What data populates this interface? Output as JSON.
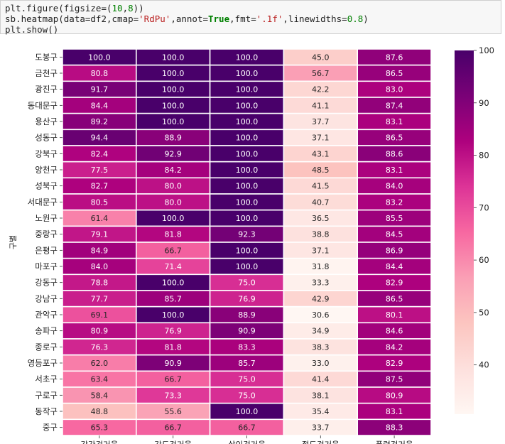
{
  "code": {
    "line1_a": "plt.figure(figsize=(",
    "line1_n1": "10",
    "line1_b": ",",
    "line1_n2": "8",
    "line1_c": "))",
    "line2_a": "sb.heatmap(data=df2,cmap=",
    "line2_s1": "'RdPu'",
    "line2_b": ",annot=",
    "line2_k": "True",
    "line2_c": ",fmt=",
    "line2_s2": "'.1f'",
    "line2_d": ",linewidths=",
    "line2_n": "0.8",
    "line2_e": ")",
    "line3": "plt.show()"
  },
  "chart_data": {
    "type": "heatmap",
    "ylabel": "구별",
    "categories_x": [
      "강간검거율",
      "강도검거율",
      "살인검거율",
      "절도검거율",
      "폭력검거율"
    ],
    "categories_y": [
      "도봉구",
      "금천구",
      "광진구",
      "동대문구",
      "용산구",
      "성동구",
      "강북구",
      "양천구",
      "성북구",
      "서대문구",
      "노원구",
      "중랑구",
      "은평구",
      "마포구",
      "강동구",
      "강남구",
      "관악구",
      "송파구",
      "종로구",
      "영등포구",
      "서초구",
      "구로구",
      "동작구",
      "중구"
    ],
    "values": [
      [
        100.0,
        100.0,
        100.0,
        45.0,
        87.6
      ],
      [
        80.8,
        100.0,
        100.0,
        56.7,
        86.5
      ],
      [
        91.7,
        100.0,
        100.0,
        42.2,
        83.0
      ],
      [
        84.4,
        100.0,
        100.0,
        41.1,
        87.4
      ],
      [
        89.2,
        100.0,
        100.0,
        37.7,
        83.1
      ],
      [
        94.4,
        88.9,
        100.0,
        37.1,
        86.5
      ],
      [
        82.4,
        92.9,
        100.0,
        43.1,
        88.6
      ],
      [
        77.5,
        84.2,
        100.0,
        48.5,
        83.1
      ],
      [
        82.7,
        80.0,
        100.0,
        41.5,
        84.0
      ],
      [
        80.5,
        80.0,
        100.0,
        40.7,
        83.2
      ],
      [
        61.4,
        100.0,
        100.0,
        36.5,
        85.5
      ],
      [
        79.1,
        81.8,
        92.3,
        38.8,
        84.5
      ],
      [
        84.9,
        66.7,
        100.0,
        37.1,
        86.9
      ],
      [
        84.0,
        71.4,
        100.0,
        31.8,
        84.4
      ],
      [
        78.8,
        100.0,
        75.0,
        33.3,
        82.9
      ],
      [
        77.7,
        85.7,
        76.9,
        42.9,
        86.5
      ],
      [
        69.1,
        100.0,
        88.9,
        30.6,
        80.1
      ],
      [
        80.9,
        76.9,
        90.9,
        34.9,
        84.6
      ],
      [
        76.3,
        81.8,
        83.3,
        38.3,
        84.2
      ],
      [
        62.0,
        90.9,
        85.7,
        33.0,
        82.9
      ],
      [
        63.4,
        66.7,
        75.0,
        41.4,
        87.5
      ],
      [
        58.4,
        73.3,
        75.0,
        38.1,
        80.9
      ],
      [
        48.8,
        55.6,
        100.0,
        35.4,
        83.1
      ],
      [
        65.3,
        66.7,
        66.7,
        33.7,
        88.3
      ]
    ],
    "colorbar_range": [
      30.6,
      100.0
    ],
    "colorbar_ticks": [
      40,
      50,
      60,
      70,
      80,
      90,
      100
    ],
    "colormap": "RdPu",
    "annotation_format": ".1f",
    "colors": [
      "#fff7f3",
      "#fde0dd",
      "#fcc5c0",
      "#fa9fb5",
      "#f768a1",
      "#dd3497",
      "#ae017e",
      "#7a0177",
      "#49006a"
    ]
  }
}
